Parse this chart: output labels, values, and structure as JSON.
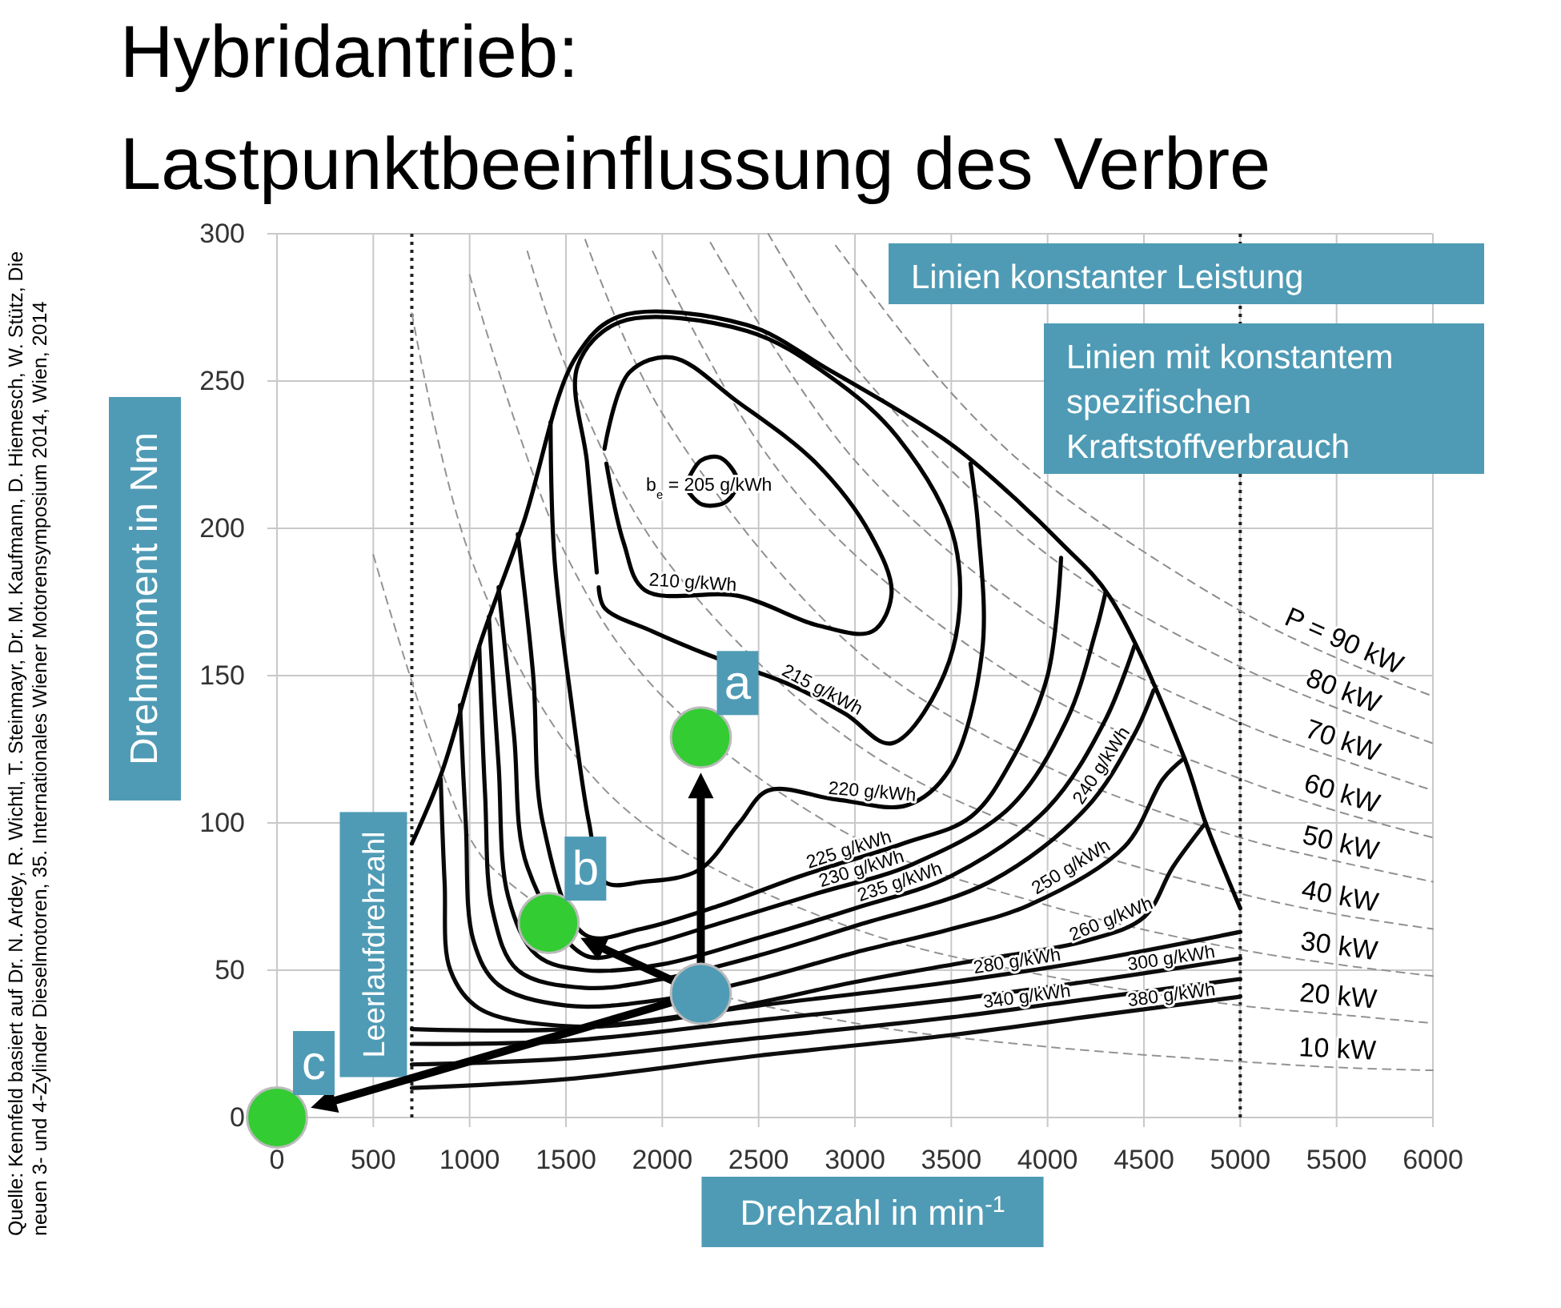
{
  "chart_data": {
    "type": "line",
    "title": "Hybridantrieb:",
    "subtitle": "Lastpunktbeeinflussung des Verbre",
    "xlabel": "Drehzahl in min$^{-1}$",
    "ylabel": "Drehmoment in Nm",
    "xlim": [
      0,
      6000
    ],
    "xticks": [
      0,
      500,
      1000,
      1500,
      2000,
      2500,
      3000,
      3500,
      4000,
      4500,
      5000,
      5500,
      6000
    ],
    "ylim": [
      0,
      300
    ],
    "yticks": [
      0,
      50,
      100,
      150,
      200,
      250,
      300
    ],
    "grid": true,
    "ref_lines": [
      {
        "axis": "x",
        "value": 700,
        "label": "Leerlaufdrehzahl",
        "line_style": "dotted",
        "color": "#222222"
      },
      {
        "axis": "x",
        "value": 5000,
        "label": null,
        "line_style": "dotted",
        "color": "#222222"
      }
    ],
    "series": [
      {
        "name": "P = 90 kW",
        "color": "#8c8c8c",
        "line_style": "dashed",
        "x": [
          2900,
          3500,
          4000,
          5000,
          5500,
          6000
        ],
        "values": [
          296,
          246,
          215,
          172,
          156,
          143
        ]
      },
      {
        "name": "80 kW",
        "color": "#8d8d8d",
        "line_style": "dashed",
        "x": [
          2550,
          3000,
          4000,
          5000,
          5500,
          6000
        ],
        "values": [
          300,
          255,
          191,
          153,
          139,
          127
        ]
      },
      {
        "name": "70 kW",
        "color": "#8e8e8e",
        "line_style": "dashed",
        "x": [
          2250,
          3000,
          4000,
          5000,
          5500,
          6000
        ],
        "values": [
          297,
          223,
          167,
          134,
          122,
          111
        ]
      },
      {
        "name": "60 kW",
        "color": "#8f8f8f",
        "line_style": "dashed",
        "x": [
          1950,
          2500,
          3000,
          4000,
          5000,
          5500,
          6000
        ],
        "values": [
          294,
          229,
          191,
          143,
          115,
          104,
          95
        ]
      },
      {
        "name": "50 kW",
        "color": "#909090",
        "line_style": "dashed",
        "x": [
          1600,
          2000,
          3000,
          4000,
          5000,
          5500,
          6000
        ],
        "values": [
          298,
          239,
          159,
          119,
          95,
          87,
          80
        ]
      },
      {
        "name": "40 kW",
        "color": "#919191",
        "line_style": "dashed",
        "x": [
          1300,
          1500,
          2000,
          3000,
          4000,
          5000,
          5500,
          6000
        ],
        "values": [
          294,
          255,
          191,
          127,
          95,
          76,
          69,
          64
        ]
      },
      {
        "name": "30 kW",
        "color": "#929292",
        "line_style": "dashed",
        "x": [
          1000,
          1500,
          2000,
          3000,
          4000,
          5000,
          5500,
          6000
        ],
        "values": [
          286,
          191,
          143,
          95,
          72,
          57,
          52,
          48
        ]
      },
      {
        "name": "20 kW",
        "color": "#939393",
        "line_style": "dashed",
        "x": [
          700,
          1000,
          1500,
          2000,
          3000,
          4000,
          5000,
          5500,
          6000
        ],
        "values": [
          273,
          191,
          127,
          95,
          64,
          48,
          38,
          35,
          32
        ]
      },
      {
        "name": "10 kW",
        "color": "#949494",
        "line_style": "dashed",
        "x": [
          500,
          1000,
          1200,
          2000,
          3000,
          4000,
          5000,
          5500,
          6000
        ],
        "values": [
          191,
          95,
          80,
          48,
          32,
          24,
          19,
          17,
          16
        ]
      },
      {
        "name": null,
        "color": "#000000",
        "line_style": "solid",
        "x": [
          700,
          860,
          1050,
          1280,
          1550,
          1780,
          2440,
          2860,
          3490,
          3800,
          4070,
          4320,
          4710,
          4820,
          5000
        ],
        "values": [
          93,
          118,
          160,
          202,
          258,
          272,
          269,
          254,
          229,
          212,
          195,
          177,
          122,
          100,
          71
        ]
      },
      {
        "name": "b$_{e}$ = 205 g/kWh",
        "color": "#010101",
        "line_style": "solid",
        "x": [
          2130,
          2200,
          2300,
          2390,
          2330,
          2210,
          2140
        ],
        "values": [
          216,
          223,
          224,
          216,
          209,
          208,
          212
        ]
      },
      {
        "name": "210 g/kWh",
        "color": "#020202",
        "line_style": "solid",
        "x": [
          1700,
          1830,
          2050,
          2390,
          2800,
          3080,
          3190,
          3090,
          2810,
          2400,
          1910,
          1800,
          1710
        ],
        "values": [
          227,
          253,
          258,
          243,
          222,
          198,
          178,
          165,
          167,
          177,
          179,
          195,
          222
        ]
      },
      {
        "name": "215 g/kWh",
        "color": "#030303",
        "line_style": "solid",
        "x": [
          1660,
          1610,
          1560,
          1780,
          2440,
          2860,
          3220,
          3520,
          3490,
          3190,
          2950,
          2660,
          2240,
          1950,
          1700,
          1670
        ],
        "values": [
          185,
          222,
          255,
          270,
          267,
          252,
          231,
          195,
          155,
          127,
          137,
          147,
          157,
          165,
          173,
          180
        ]
      },
      {
        "name": "220 g/kWh",
        "color": "#040404",
        "line_style": "solid",
        "x": [
          1420,
          1440,
          1530,
          1620,
          1700,
          1900,
          2190,
          2400,
          2550,
          2900,
          3270,
          3490,
          3660,
          3640,
          3600
        ],
        "values": [
          236,
          190,
          140,
          100,
          80,
          80,
          84,
          100,
          111,
          108,
          106,
          118,
          158,
          200,
          222
        ]
      },
      {
        "name": "225 g/kWh",
        "color": "#050505",
        "line_style": "solid",
        "x": [
          1250,
          1330,
          1380,
          1600,
          1890,
          2300,
          2720,
          3250,
          3600,
          3820,
          4000,
          4070
        ],
        "values": [
          198,
          150,
          100,
          62,
          64,
          72,
          82,
          93,
          102,
          122,
          150,
          190
        ]
      },
      {
        "name": "230 g/kWh",
        "color": "#060606",
        "line_style": "solid",
        "x": [
          1150,
          1230,
          1300,
          1600,
          1890,
          2300,
          2800,
          3300,
          3800,
          4100,
          4250,
          4300
        ],
        "values": [
          180,
          130,
          85,
          55,
          58,
          66,
          76,
          86,
          105,
          135,
          165,
          178
        ]
      },
      {
        "name": "235 g/kWh",
        "color": "#070707",
        "line_style": "solid",
        "x": [
          1100,
          1150,
          1200,
          1350,
          1600,
          2000,
          2500,
          3000,
          3500,
          4000,
          4300,
          4450
        ],
        "values": [
          170,
          120,
          75,
          55,
          50,
          52,
          61,
          71,
          82,
          105,
          135,
          160
        ]
      },
      {
        "name": "240 g/kWh",
        "color": "#080808",
        "line_style": "solid",
        "x": [
          1050,
          1080,
          1120,
          1250,
          1600,
          2000,
          2500,
          3000,
          3700,
          4200,
          4450,
          4550
        ],
        "values": [
          160,
          110,
          70,
          50,
          44,
          47,
          55,
          65,
          80,
          105,
          130,
          145
        ]
      },
      {
        "name": "250 g/kWh",
        "color": "#090909",
        "line_style": "solid",
        "x": [
          950,
          980,
          1020,
          1150,
          1500,
          2000,
          2500,
          3000,
          3500,
          3900,
          4400,
          4600,
          4710
        ],
        "values": [
          140,
          100,
          60,
          45,
          38,
          40,
          47,
          56,
          64,
          72,
          92,
          115,
          122
        ]
      },
      {
        "name": "260 g/kWh",
        "color": "#0a0a0a",
        "line_style": "solid",
        "x": [
          850,
          870,
          900,
          1050,
          1500,
          2000,
          2500,
          3000,
          3600,
          4200,
          4500,
          4650,
          4820
        ],
        "values": [
          115,
          80,
          50,
          37,
          31,
          33,
          39,
          46,
          53,
          60,
          68,
          85,
          100
        ]
      },
      {
        "name": "280 g/kWh",
        "color": "#0b0b0b",
        "line_style": "solid",
        "x": [
          700,
          1500,
          2500,
          3500,
          4200,
          5000
        ],
        "values": [
          30,
          30,
          38,
          46,
          53,
          63
        ]
      },
      {
        "name": "300 g/kWh",
        "color": "#0c0c0c",
        "line_style": "solid",
        "x": [
          700,
          1500,
          2500,
          3500,
          4300,
          5000
        ],
        "values": [
          25,
          26,
          33,
          40,
          47,
          54
        ]
      },
      {
        "name": "340 g/kWh",
        "color": "#0d0d0d",
        "line_style": "solid",
        "x": [
          700,
          1500,
          2500,
          3500,
          4300,
          5000
        ],
        "values": [
          18,
          20,
          27,
          34,
          41,
          47
        ]
      },
      {
        "name": "380 g/kWh",
        "color": "#0e0e0e",
        "line_style": "solid",
        "x": [
          700,
          1500,
          2500,
          3500,
          4300,
          5000
        ],
        "values": [
          10,
          13,
          21,
          28,
          35,
          41
        ]
      },
      {
        "name": null,
        "type": "scatter",
        "color": "#4f9bb5",
        "marker": "circle",
        "x": [
          2200
        ],
        "values": [
          42
        ]
      },
      {
        "name": null,
        "type": "scatter",
        "color": "#33cc33",
        "marker": "circle",
        "x": [
          2200,
          1410,
          0
        ],
        "values": [
          129,
          66,
          0
        ]
      }
    ],
    "annotations": [
      "Linien konstanter Leistung",
      "Linien mit konstantem spezifischen Kraftstoffverbrauch",
      "Quelle: Kennfeld basiert auf Dr. N. Ardey, R. Wichtl, T. Steinmayr, Dr. M. Kaufmann, D. Hiemesch, W. Stütz, Die neuen 3- und 4-Zylinder Dieselmotoren, 35. Internationales Wiener Motorensymposium 2014, Wien, 2014",
      {
        "text": "a",
        "x": 2200,
        "y": 129
      },
      {
        "text": "b",
        "x": 1410,
        "y": 66
      },
      {
        "text": "c",
        "x": 0,
        "y": 0
      }
    ]
  }
}
